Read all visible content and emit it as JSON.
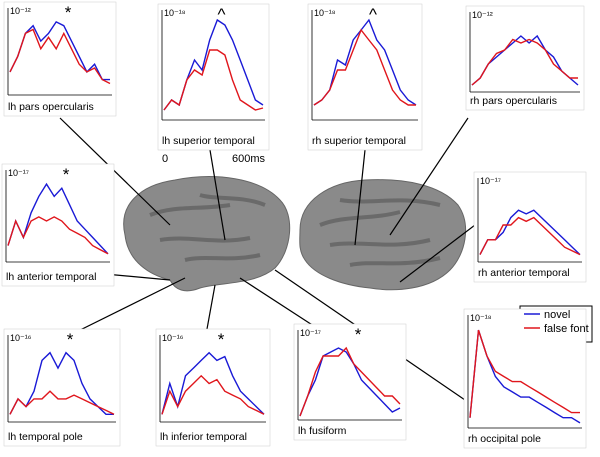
{
  "time_label": "0-600ms",
  "legend": [
    {
      "name": "novel",
      "color": "#1a1ad6"
    },
    {
      "name": "false font",
      "color": "#e0161c"
    }
  ],
  "chart_data": [
    {
      "type": "line",
      "title": "lh pars opercularis",
      "scale_label": "10⁻¹²",
      "annotation": "*",
      "ylim": [
        0,
        10
      ],
      "series": [
        {
          "values": [
            3,
            5,
            8,
            9,
            7,
            8,
            9.5,
            9,
            7,
            5,
            3,
            4,
            2,
            2
          ]
        },
        {
          "values": [
            3,
            5,
            8,
            8.5,
            6,
            7.5,
            6,
            8,
            6,
            4,
            3,
            3.5,
            2,
            1.5
          ]
        }
      ]
    },
    {
      "type": "line",
      "title": "lh superior temporal",
      "scale_label": "10⁻¹⁸",
      "annotation": "^",
      "ylim": [
        0,
        10
      ],
      "xlabels": [
        "0",
        "600ms"
      ],
      "series": [
        {
          "values": [
            1,
            2,
            1.5,
            4,
            6,
            5,
            8,
            10,
            9.5,
            8,
            6,
            4,
            2,
            1.5
          ]
        },
        {
          "values": [
            1,
            2,
            1.5,
            4,
            5,
            4.5,
            7,
            7,
            6.5,
            4,
            2,
            1.5,
            1,
            1.2
          ]
        }
      ]
    },
    {
      "type": "line",
      "title": "rh superior temporal",
      "scale_label": "10⁻¹⁸",
      "annotation": "^",
      "ylim": [
        0,
        10
      ],
      "series": [
        {
          "values": [
            1.5,
            2,
            3,
            6,
            5.5,
            8,
            9,
            10,
            8,
            7,
            5,
            3,
            2,
            1.5
          ]
        },
        {
          "values": [
            1.5,
            2,
            3,
            5,
            5,
            7,
            9,
            8,
            7,
            5,
            3,
            2,
            1.5,
            1.5
          ]
        }
      ]
    },
    {
      "type": "line",
      "title": "rh pars opercularis",
      "scale_label": "10⁻¹²",
      "ylim": [
        0,
        10
      ],
      "series": [
        {
          "values": [
            1,
            2,
            4,
            5,
            6,
            7,
            8,
            7,
            8,
            6,
            5,
            3,
            2,
            1
          ]
        },
        {
          "values": [
            1,
            2,
            4,
            5.5,
            6,
            7.5,
            7,
            7.5,
            7,
            6,
            4,
            3,
            2,
            2
          ]
        }
      ]
    },
    {
      "type": "line",
      "title": "lh anterior temporal",
      "scale_label": "10⁻¹⁷",
      "annotation": "*",
      "ylim": [
        0,
        10
      ],
      "series": [
        {
          "values": [
            2,
            5,
            3,
            6,
            8,
            9.5,
            8,
            9,
            7,
            5,
            4,
            3,
            2,
            1
          ]
        },
        {
          "values": [
            2,
            5,
            3,
            5,
            5.5,
            5,
            5.5,
            5,
            4,
            3.5,
            3,
            2,
            1.5,
            1
          ]
        }
      ]
    },
    {
      "type": "line",
      "title": "rh anterior temporal",
      "scale_label": "10⁻¹⁷",
      "ylim": [
        0,
        10
      ],
      "series": [
        {
          "values": [
            1,
            3,
            3,
            4,
            6,
            7,
            6.5,
            7,
            6,
            5,
            4,
            3,
            2,
            1
          ]
        },
        {
          "values": [
            1,
            3,
            3,
            5,
            5,
            6,
            5.5,
            6,
            5,
            4,
            3,
            2,
            1.5,
            1
          ]
        }
      ]
    },
    {
      "type": "line",
      "title": "lh temporal pole",
      "scale_label": "10⁻¹⁶",
      "annotation": "*",
      "ylim": [
        0,
        10
      ],
      "series": [
        {
          "values": [
            1,
            3,
            2,
            4,
            8,
            9,
            7,
            9,
            8,
            5,
            3,
            2,
            1,
            1
          ]
        },
        {
          "values": [
            1,
            3,
            2,
            3,
            3,
            4,
            3,
            3,
            3.5,
            3,
            2.5,
            2,
            1.5,
            1
          ]
        }
      ]
    },
    {
      "type": "line",
      "title": "lh inferior temporal",
      "scale_label": "10⁻¹⁶",
      "annotation": "*",
      "ylim": [
        0,
        10
      ],
      "series": [
        {
          "values": [
            1,
            5,
            2,
            6,
            7,
            8,
            9,
            8,
            8.5,
            6,
            4,
            3,
            2,
            1
          ]
        },
        {
          "values": [
            1,
            4,
            2,
            4,
            5,
            6,
            5,
            5.5,
            4,
            3.5,
            3,
            2,
            1.5,
            1
          ]
        }
      ]
    },
    {
      "type": "line",
      "title": "lh fusiform",
      "scale_label": "10⁻¹⁷",
      "annotation": "*",
      "ylim": [
        0,
        10
      ],
      "series": [
        {
          "values": [
            0.5,
            3,
            5,
            8,
            8.5,
            9,
            8.5,
            7,
            5,
            4,
            3,
            2,
            1,
            1.5
          ]
        },
        {
          "values": [
            0.5,
            3,
            6,
            8,
            8,
            8,
            9,
            7,
            6,
            5,
            4,
            3,
            3,
            2
          ]
        }
      ]
    },
    {
      "type": "line",
      "title": "rh occipital pole",
      "scale_label": "10⁻¹⁸",
      "ylim": [
        0,
        10
      ],
      "series": [
        {
          "values": [
            1,
            9.5,
            7,
            5,
            4,
            3.5,
            3,
            3,
            2.5,
            2,
            1.5,
            1,
            1,
            0.5
          ]
        },
        {
          "values": [
            1,
            9.5,
            7,
            5.5,
            5,
            4.5,
            4.5,
            4,
            3.5,
            3,
            2.5,
            2,
            1.5,
            1.5
          ]
        }
      ]
    }
  ]
}
